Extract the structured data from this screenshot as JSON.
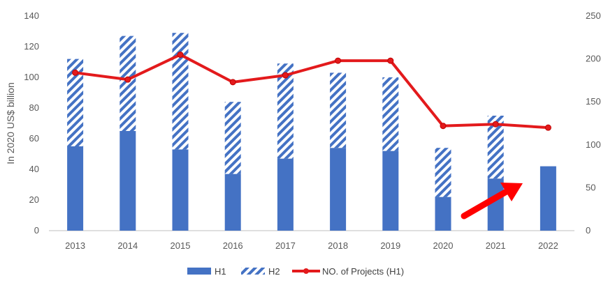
{
  "chart_data": {
    "type": "bar",
    "categories": [
      "2013",
      "2014",
      "2015",
      "2016",
      "2017",
      "2018",
      "2019",
      "2020",
      "2021",
      "2022"
    ],
    "series": [
      {
        "name": "H1",
        "type": "bar",
        "axis": "left",
        "values": [
          55,
          65,
          53,
          37,
          47,
          54,
          52,
          22,
          34,
          42
        ]
      },
      {
        "name": "H2",
        "type": "bar",
        "axis": "left",
        "values": [
          57,
          62,
          76,
          47,
          62,
          49,
          48,
          32,
          41,
          null
        ]
      },
      {
        "name": "NO. of Projects (H1)",
        "type": "line",
        "axis": "right",
        "values": [
          184,
          176,
          205,
          173,
          181,
          198,
          198,
          122,
          124,
          120
        ]
      }
    ],
    "stacked": true,
    "ylabel": "In 2020 US$ billion",
    "ylim": [
      0,
      140
    ],
    "yticks": [
      0,
      20,
      40,
      60,
      80,
      100,
      120,
      140
    ],
    "y2lim": [
      0,
      250
    ],
    "y2ticks": [
      0,
      50,
      100,
      150,
      200,
      250
    ],
    "grid": false,
    "legend": "bottom-center",
    "annotation": "red-upward-arrow",
    "colors": {
      "h1": "#4472c4",
      "h2_stripe": "#4472c4",
      "line": "#e31a1c",
      "axis": "#bfbfbf"
    }
  }
}
